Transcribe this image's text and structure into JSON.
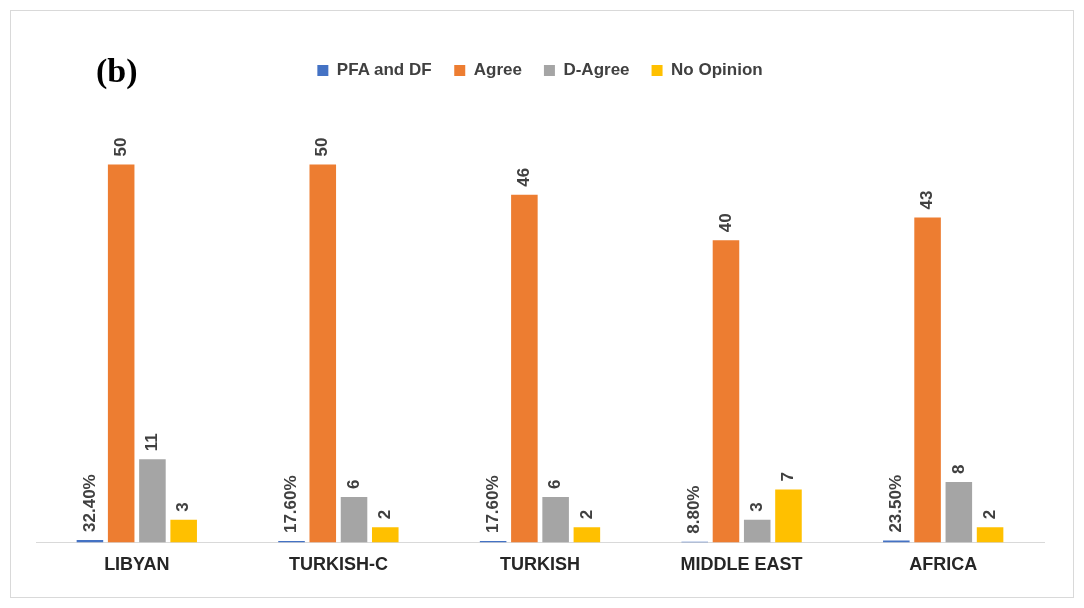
{
  "chart_data": {
    "type": "bar",
    "title": "(b)",
    "categories": [
      "LIBYAN",
      "TURKISH-C",
      "TURKISH",
      "MIDDLE EAST",
      "AFRICA"
    ],
    "series": [
      {
        "name": "PFA and DF",
        "color": "#4472c4",
        "values": [
          0.324,
          0.176,
          0.176,
          0.088,
          0.235
        ],
        "value_labels": [
          "32.40%",
          "17.60%",
          "17.60%",
          "8.80%",
          "23.50%"
        ]
      },
      {
        "name": "Agree",
        "color": "#ed7d31",
        "values": [
          50,
          50,
          46,
          40,
          43
        ],
        "value_labels": [
          "50",
          "50",
          "46",
          "40",
          "43"
        ]
      },
      {
        "name": "D-Agree",
        "color": "#a5a5a5",
        "values": [
          11,
          6,
          6,
          3,
          8
        ],
        "value_labels": [
          "11",
          "6",
          "6",
          "3",
          "8"
        ]
      },
      {
        "name": "No Opinion",
        "color": "#ffc000",
        "values": [
          3,
          2,
          2,
          7,
          2
        ],
        "value_labels": [
          "3",
          "2",
          "2",
          "7",
          "2"
        ]
      }
    ],
    "legend": "top",
    "grid": false
  }
}
